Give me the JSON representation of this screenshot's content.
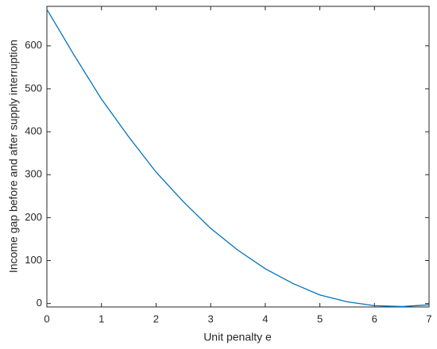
{
  "chart_data": {
    "type": "line",
    "xlabel": "Unit penalty e",
    "ylabel": "Income gap before and after supply interruption",
    "x": [
      0,
      0.5,
      1,
      1.5,
      2,
      2.5,
      3,
      3.5,
      4,
      4.5,
      5,
      5.5,
      6,
      6.5,
      7
    ],
    "series": [
      {
        "color": "#0072bd",
        "values": [
          685,
          578,
          476,
          388,
          306,
          237,
          175,
          124,
          81,
          47,
          20,
          4,
          -5,
          -7,
          -3
        ]
      }
    ],
    "xlim": [
      0,
      7
    ],
    "xticks": [
      0,
      1,
      2,
      3,
      4,
      5,
      6,
      7
    ],
    "ylim": [
      -8,
      692
    ],
    "yticks": [
      0,
      100,
      200,
      300,
      400,
      500,
      600
    ]
  }
}
